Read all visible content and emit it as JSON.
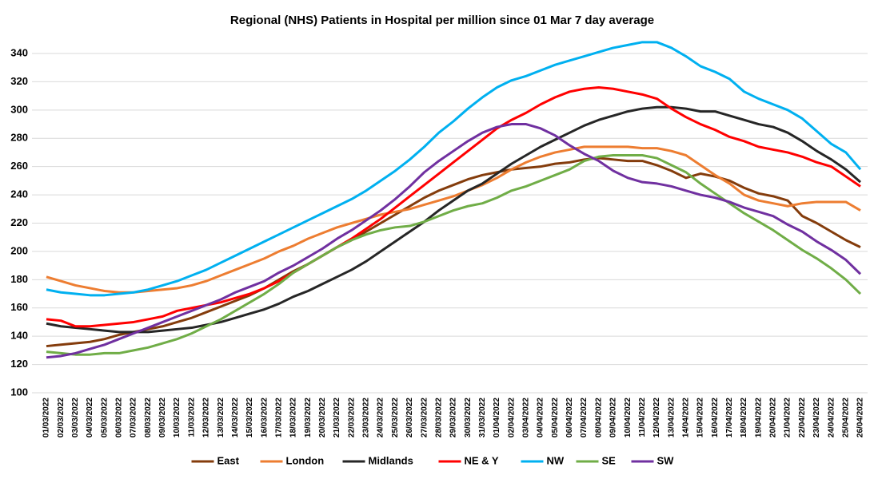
{
  "chart_data": {
    "type": "line",
    "title": "Regional (NHS) Patients in Hospital per million since 01 Mar 7 day average",
    "categories": [
      "01/03/2022",
      "02/03/2022",
      "03/03/2022",
      "04/03/2022",
      "05/03/2022",
      "06/03/2022",
      "07/03/2022",
      "08/03/2022",
      "09/03/2022",
      "10/03/2022",
      "11/03/2022",
      "12/03/2022",
      "13/03/2022",
      "14/03/2022",
      "15/03/2022",
      "16/03/2022",
      "17/03/2022",
      "18/03/2022",
      "19/03/2022",
      "20/03/2022",
      "21/03/2022",
      "22/03/2022",
      "23/03/2022",
      "24/03/2022",
      "25/03/2022",
      "26/03/2022",
      "27/03/2022",
      "28/03/2022",
      "29/03/2022",
      "30/03/2022",
      "31/03/2022",
      "01/04/2022",
      "02/04/2022",
      "03/04/2022",
      "04/04/2022",
      "05/04/2022",
      "06/04/2022",
      "07/04/2022",
      "08/04/2022",
      "09/04/2022",
      "10/04/2022",
      "11/04/2022",
      "12/04/2022",
      "13/04/2022",
      "14/04/2022",
      "15/04/2022",
      "16/04/2022",
      "17/04/2022",
      "18/04/2022",
      "19/04/2022",
      "20/04/2022",
      "21/04/2022",
      "22/04/2022",
      "23/04/2022",
      "24/04/2022",
      "25/04/2022",
      "26/04/2022"
    ],
    "series": [
      {
        "name": "East",
        "color": "#843c0c",
        "values": [
          133,
          134,
          135,
          136,
          138,
          141,
          143,
          145,
          147,
          150,
          153,
          157,
          161,
          165,
          169,
          174,
          180,
          186,
          191,
          197,
          203,
          208,
          214,
          220,
          226,
          232,
          238,
          243,
          247,
          251,
          254,
          256,
          258,
          259,
          260,
          262,
          263,
          265,
          266,
          265,
          264,
          264,
          261,
          257,
          252,
          255,
          253,
          250,
          245,
          241,
          239,
          236,
          225,
          220,
          214,
          208,
          203
        ]
      },
      {
        "name": "London",
        "color": "#ed7d31",
        "values": [
          182,
          179,
          176,
          174,
          172,
          171,
          171,
          172,
          173,
          174,
          176,
          179,
          183,
          187,
          191,
          195,
          200,
          204,
          209,
          213,
          217,
          220,
          223,
          226,
          228,
          230,
          233,
          236,
          239,
          243,
          247,
          252,
          258,
          263,
          267,
          270,
          272,
          274,
          274,
          274,
          274,
          273,
          273,
          271,
          268,
          261,
          254,
          248,
          240,
          236,
          234,
          232,
          234,
          235,
          235,
          235,
          229
        ]
      },
      {
        "name": "Midlands",
        "color": "#262626",
        "values": [
          149,
          147,
          146,
          145,
          144,
          143,
          143,
          143,
          144,
          145,
          146,
          148,
          150,
          153,
          156,
          159,
          163,
          168,
          172,
          177,
          182,
          187,
          193,
          200,
          207,
          214,
          221,
          229,
          236,
          243,
          248,
          255,
          262,
          268,
          274,
          279,
          284,
          289,
          293,
          296,
          299,
          301,
          302,
          302,
          301,
          299,
          299,
          296,
          293,
          290,
          288,
          284,
          278,
          271,
          265,
          258,
          249
        ]
      },
      {
        "name": "NE & Y",
        "color": "#ff0000",
        "values": [
          152,
          151,
          147,
          147,
          148,
          149,
          150,
          152,
          154,
          158,
          160,
          162,
          164,
          167,
          170,
          174,
          179,
          185,
          191,
          197,
          203,
          209,
          216,
          223,
          231,
          239,
          247,
          255,
          263,
          271,
          279,
          287,
          293,
          298,
          304,
          309,
          313,
          315,
          316,
          315,
          313,
          311,
          308,
          301,
          295,
          290,
          286,
          281,
          278,
          274,
          272,
          270,
          267,
          263,
          260,
          253,
          246
        ]
      },
      {
        "name": "NW",
        "color": "#00b0f0",
        "values": [
          173,
          171,
          170,
          169,
          169,
          170,
          171,
          173,
          176,
          179,
          183,
          187,
          192,
          197,
          202,
          207,
          212,
          217,
          222,
          227,
          232,
          237,
          243,
          250,
          257,
          265,
          274,
          284,
          292,
          301,
          309,
          316,
          321,
          324,
          328,
          332,
          335,
          338,
          341,
          344,
          346,
          348,
          348,
          344,
          338,
          331,
          327,
          322,
          313,
          308,
          304,
          300,
          294,
          285,
          276,
          270,
          258
        ]
      },
      {
        "name": "SE",
        "color": "#70ad47",
        "values": [
          129,
          128,
          127,
          127,
          128,
          128,
          130,
          132,
          135,
          138,
          142,
          147,
          152,
          158,
          164,
          170,
          177,
          185,
          191,
          197,
          203,
          208,
          212,
          215,
          217,
          218,
          221,
          225,
          229,
          232,
          234,
          238,
          243,
          246,
          250,
          254,
          258,
          264,
          267,
          268,
          268,
          268,
          266,
          261,
          256,
          248,
          241,
          234,
          227,
          221,
          215,
          208,
          201,
          195,
          188,
          180,
          170
        ]
      },
      {
        "name": "SW",
        "color": "#7030a0",
        "values": [
          125,
          126,
          128,
          131,
          134,
          138,
          142,
          146,
          150,
          154,
          158,
          162,
          166,
          171,
          175,
          179,
          185,
          190,
          196,
          202,
          209,
          215,
          222,
          229,
          237,
          246,
          256,
          264,
          271,
          278,
          284,
          288,
          290,
          290,
          287,
          282,
          275,
          269,
          264,
          257,
          252,
          249,
          248,
          246,
          243,
          240,
          238,
          235,
          231,
          228,
          225,
          219,
          214,
          207,
          201,
          194,
          184
        ]
      }
    ],
    "ylim": [
      100,
      340
    ],
    "yticks": [
      100,
      120,
      140,
      160,
      180,
      200,
      220,
      240,
      260,
      280,
      300,
      320,
      340
    ],
    "grid": true
  }
}
